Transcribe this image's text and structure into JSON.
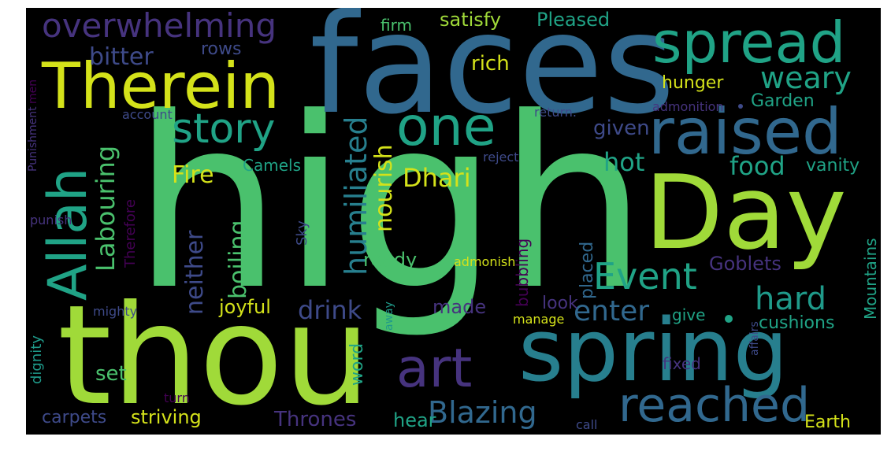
{
  "words": {
    "high": "high",
    "faces": "faces",
    "thou": "thou",
    "spring": "spring",
    "Day": "Day",
    "Therein": "Therein",
    "raised": "raised",
    "spread": "spread",
    "Allah": "Allah",
    "one": "one",
    "story": "story",
    "reached": "reached",
    "art": "art",
    "overwhelming": "overwhelming",
    "humiliated": "humiliated",
    "Labouring": "Labouring",
    "Event": "Event",
    "Blazing": "Blazing",
    "weary": "weary",
    "boiling": "boiling",
    "neither": "neither",
    "hard": "hard",
    "enter": "enter",
    "food": "food",
    "Dhari": "Dhari",
    "nourish": "nourish",
    "drink": "drink",
    "hot": "hot",
    "Fire": "Fire",
    "bitter": "bitter",
    "given": "given",
    "hunger": "hunger",
    "cushions": "cushions",
    "Mountains": "Mountains",
    "striving": "striving",
    "Thrones": "Thrones",
    "Earth": "Earth",
    "Goblets": "Goblets",
    "rich": "rich",
    "satisfy": "satisfy",
    "Pleased": "Pleased",
    "joyful": "joyful",
    "placed": "placed",
    "bubbling": "bubbling",
    "word": "word",
    "set": "set",
    "carpets": "carpets",
    "hear": "hear",
    "ready": "ready",
    "made": "made",
    "look": "look",
    "vanity": "vanity",
    "Garden": "Garden",
    "Camels": "Camels",
    "rows": "rows",
    "firm": "firm",
    "Sky": "Sky",
    "Therefore": "Therefore",
    "dignity": "dignity",
    "fixed": "fixed",
    "give": "give",
    "admonish": "admonish",
    "mighty": "mighty",
    "manage": "manage",
    "away": "away",
    "affairs": "affairs",
    "account": "account",
    "return": "return.",
    "admonition": "admonition",
    "reject": "reject",
    "punish": "punish",
    "Punishment": "Punishment",
    "men": "men",
    "turn": "turn",
    "call": "call"
  },
  "palette": {
    "yellow": "#d4e21a",
    "lime": "#a0da39",
    "green": "#4ac16d",
    "teal_green": "#20a386",
    "teal": "#1f9a8a",
    "blue_teal": "#277f8e",
    "blue": "#31688e",
    "slate": "#3e4a89",
    "indigo": "#46337e",
    "purple": "#440154",
    "background": "#000000"
  }
}
